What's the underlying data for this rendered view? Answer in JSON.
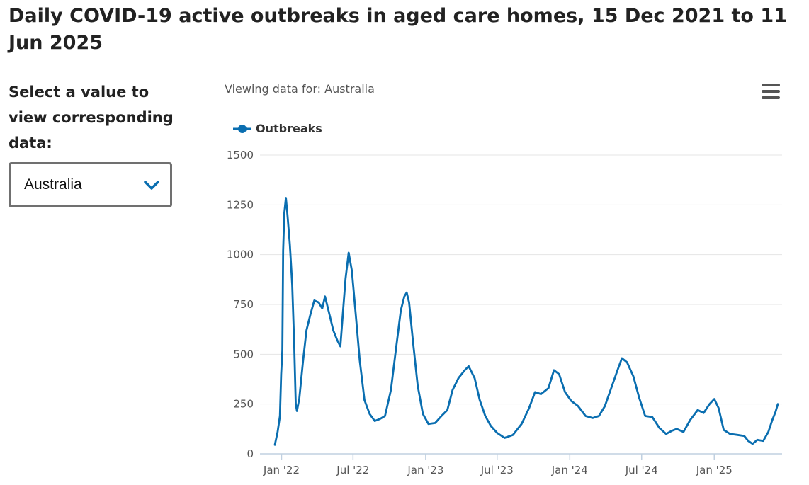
{
  "page": {
    "title": "Daily COVID-19 active outbreaks in aged care homes, 15 Dec 2021 to 11 Jun 2025",
    "select_label": "Select a value to view corresponding data:",
    "select_value": "Australia",
    "viewing_text": "Viewing data for: Australia"
  },
  "icons": {
    "dropdown": "chevron-down-icon",
    "menu": "hamburger-menu-icon"
  },
  "colors": {
    "series": "#0a6eb0",
    "grid": "#e4e4e4",
    "axis": "#c0d0e0",
    "select_border": "#707070",
    "chevron": "#0a6eb0"
  },
  "chart_data": {
    "type": "line",
    "title": "",
    "xlabel": "",
    "ylabel": "",
    "x_start": "2021-12-15",
    "x_end": "2025-06-11",
    "ylim": [
      0,
      1500
    ],
    "y_ticks": [
      0,
      250,
      500,
      750,
      1000,
      1250,
      1500
    ],
    "x_ticks": [
      {
        "date": "2022-01-01",
        "label": "Jan '22"
      },
      {
        "date": "2022-07-01",
        "label": "Jul '22"
      },
      {
        "date": "2023-01-01",
        "label": "Jan '23"
      },
      {
        "date": "2023-07-01",
        "label": "Jul '23"
      },
      {
        "date": "2024-01-01",
        "label": "Jan '24"
      },
      {
        "date": "2024-07-01",
        "label": "Jul '24"
      },
      {
        "date": "2025-01-01",
        "label": "Jan '25"
      }
    ],
    "grid": true,
    "legend": "top-left",
    "series": [
      {
        "name": "Outbreaks",
        "points": [
          [
            "2021-12-15",
            45
          ],
          [
            "2021-12-22",
            110
          ],
          [
            "2021-12-28",
            190
          ],
          [
            "2021-12-31",
            400
          ],
          [
            "2022-01-03",
            520
          ],
          [
            "2022-01-05",
            1020
          ],
          [
            "2022-01-08",
            1210
          ],
          [
            "2022-01-12",
            1285
          ],
          [
            "2022-01-16",
            1200
          ],
          [
            "2022-01-22",
            1050
          ],
          [
            "2022-01-28",
            850
          ],
          [
            "2022-02-02",
            550
          ],
          [
            "2022-02-06",
            250
          ],
          [
            "2022-02-09",
            215
          ],
          [
            "2022-02-15",
            280
          ],
          [
            "2022-02-24",
            460
          ],
          [
            "2022-03-05",
            620
          ],
          [
            "2022-03-15",
            700
          ],
          [
            "2022-03-25",
            770
          ],
          [
            "2022-04-05",
            760
          ],
          [
            "2022-04-14",
            730
          ],
          [
            "2022-04-21",
            790
          ],
          [
            "2022-05-01",
            710
          ],
          [
            "2022-05-12",
            620
          ],
          [
            "2022-05-22",
            570
          ],
          [
            "2022-05-30",
            540
          ],
          [
            "2022-06-05",
            700
          ],
          [
            "2022-06-12",
            880
          ],
          [
            "2022-06-20",
            1010
          ],
          [
            "2022-06-28",
            920
          ],
          [
            "2022-07-08",
            700
          ],
          [
            "2022-07-18",
            470
          ],
          [
            "2022-07-30",
            270
          ],
          [
            "2022-08-12",
            200
          ],
          [
            "2022-08-25",
            165
          ],
          [
            "2022-09-07",
            175
          ],
          [
            "2022-09-20",
            190
          ],
          [
            "2022-10-05",
            320
          ],
          [
            "2022-10-18",
            530
          ],
          [
            "2022-10-30",
            720
          ],
          [
            "2022-11-08",
            790
          ],
          [
            "2022-11-14",
            810
          ],
          [
            "2022-11-20",
            760
          ],
          [
            "2022-11-30",
            560
          ],
          [
            "2022-12-12",
            340
          ],
          [
            "2022-12-25",
            200
          ],
          [
            "2023-01-08",
            150
          ],
          [
            "2023-01-25",
            155
          ],
          [
            "2023-02-10",
            190
          ],
          [
            "2023-02-25",
            220
          ],
          [
            "2023-03-10",
            320
          ],
          [
            "2023-03-25",
            380
          ],
          [
            "2023-04-10",
            420
          ],
          [
            "2023-04-20",
            440
          ],
          [
            "2023-05-05",
            380
          ],
          [
            "2023-05-18",
            270
          ],
          [
            "2023-06-01",
            190
          ],
          [
            "2023-06-15",
            140
          ],
          [
            "2023-07-01",
            105
          ],
          [
            "2023-07-20",
            80
          ],
          [
            "2023-08-10",
            95
          ],
          [
            "2023-09-01",
            150
          ],
          [
            "2023-09-20",
            230
          ],
          [
            "2023-10-05",
            310
          ],
          [
            "2023-10-20",
            300
          ],
          [
            "2023-11-08",
            330
          ],
          [
            "2023-11-22",
            420
          ],
          [
            "2023-12-05",
            400
          ],
          [
            "2023-12-20",
            310
          ],
          [
            "2024-01-05",
            265
          ],
          [
            "2024-01-22",
            240
          ],
          [
            "2024-02-10",
            190
          ],
          [
            "2024-02-28",
            180
          ],
          [
            "2024-03-15",
            190
          ],
          [
            "2024-03-30",
            240
          ],
          [
            "2024-04-15",
            330
          ],
          [
            "2024-05-01",
            420
          ],
          [
            "2024-05-12",
            480
          ],
          [
            "2024-05-25",
            460
          ],
          [
            "2024-06-10",
            390
          ],
          [
            "2024-06-25",
            280
          ],
          [
            "2024-07-10",
            190
          ],
          [
            "2024-07-28",
            185
          ],
          [
            "2024-08-15",
            130
          ],
          [
            "2024-09-01",
            100
          ],
          [
            "2024-09-15",
            115
          ],
          [
            "2024-09-28",
            125
          ],
          [
            "2024-10-15",
            110
          ],
          [
            "2024-11-01",
            170
          ],
          [
            "2024-11-20",
            220
          ],
          [
            "2024-12-05",
            205
          ],
          [
            "2024-12-20",
            250
          ],
          [
            "2025-01-01",
            275
          ],
          [
            "2025-01-12",
            230
          ],
          [
            "2025-01-25",
            120
          ],
          [
            "2025-02-10",
            100
          ],
          [
            "2025-03-01",
            95
          ],
          [
            "2025-03-18",
            90
          ],
          [
            "2025-03-28",
            65
          ],
          [
            "2025-04-08",
            50
          ],
          [
            "2025-04-20",
            70
          ],
          [
            "2025-05-05",
            65
          ],
          [
            "2025-05-18",
            110
          ],
          [
            "2025-05-28",
            170
          ],
          [
            "2025-06-05",
            210
          ],
          [
            "2025-06-11",
            250
          ]
        ]
      }
    ]
  }
}
